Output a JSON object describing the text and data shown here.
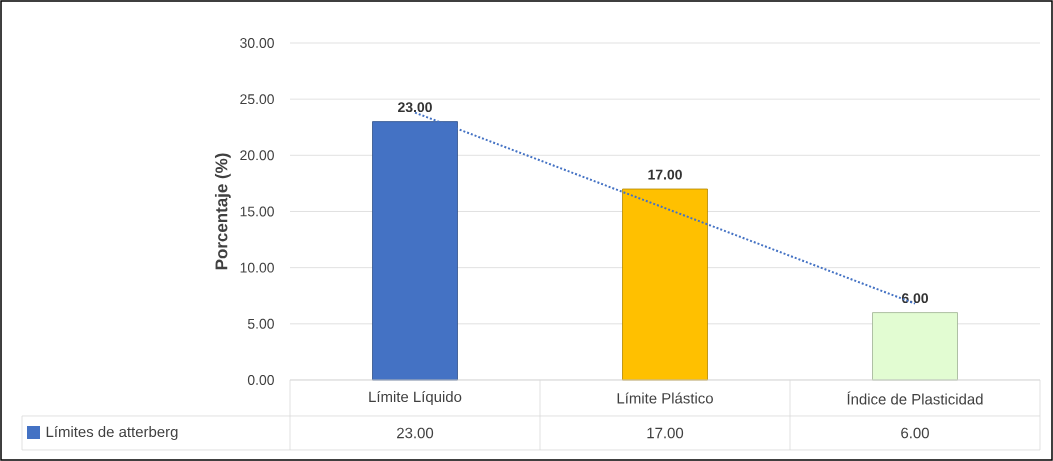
{
  "chart_data": {
    "type": "bar",
    "ylabel": "Porcentaje (%)",
    "categories": [
      "Límite Líquido",
      "Límite Plástico",
      "Índice de Plasticidad"
    ],
    "series": [
      {
        "name": "Límites de atterberg",
        "values": [
          23,
          17,
          6
        ],
        "colors": [
          "#4472c4",
          "#ffc000",
          "#e2fcd2"
        ],
        "color": "#4472c4",
        "value_labels": [
          "23.00",
          "17.00",
          "6.00"
        ]
      },
      {
        "type": "line",
        "x": [
          "Límite Líquido",
          "Índice de Plasticidad"
        ],
        "values": [
          23.8,
          6.8
        ],
        "value_labels": [
          null,
          null
        ],
        "color": "#4472c4",
        "line_style": "dotted"
      }
    ],
    "ylim": [
      0,
      30
    ],
    "yticks": [
      {
        "value": 0,
        "label": "0.00"
      },
      {
        "value": 5,
        "label": "5.00"
      },
      {
        "value": 10,
        "label": "10.00"
      },
      {
        "value": 15,
        "label": "15.00"
      },
      {
        "value": 20,
        "label": "20.00"
      },
      {
        "value": 25,
        "label": "25.00"
      },
      {
        "value": 30,
        "label": "30.00"
      }
    ],
    "grid": "y",
    "legend": "bottom",
    "data_labels": true
  }
}
